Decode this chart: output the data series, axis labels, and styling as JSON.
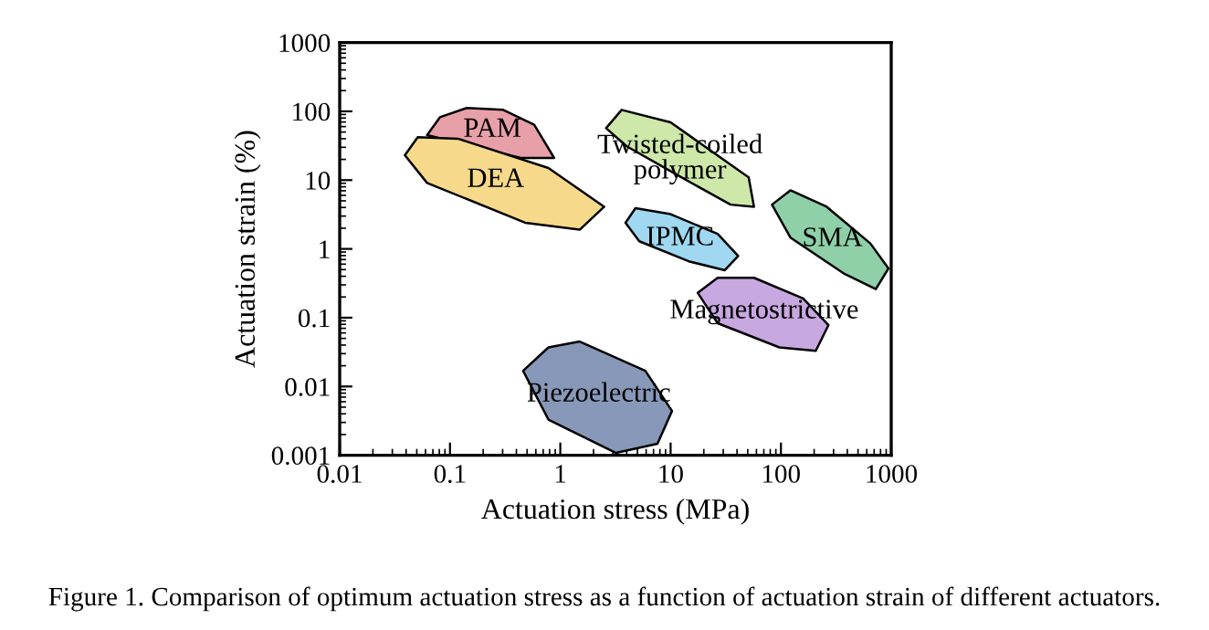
{
  "chart_data": {
    "type": "area",
    "xlabel": "Actuation stress (MPa)",
    "ylabel": "Actuation strain (%)",
    "log": "xy",
    "xlim": [
      0.01,
      1000
    ],
    "xticks": [
      0.01,
      0.1,
      1,
      10,
      100,
      1000
    ],
    "ylim": [
      0.001,
      1000
    ],
    "yticks": [
      0.001,
      0.01,
      0.1,
      1,
      10,
      100,
      1000
    ],
    "grid": false,
    "legend": false,
    "series": [
      {
        "name": "PAM",
        "color": "#e8a0a8",
        "x": [
          0.062,
          0.081,
          0.142,
          0.304,
          0.58,
          0.88,
          0.44
        ],
        "values": [
          45,
          82,
          112,
          105,
          64,
          21,
          21
        ]
      },
      {
        "name": "DEA",
        "color": "#f6d98a",
        "x": [
          0.039,
          0.051,
          0.118,
          0.78,
          2.5,
          1.5,
          0.48,
          0.062
        ],
        "values": [
          23,
          42,
          40,
          15,
          4.1,
          1.9,
          2.4,
          9.1
        ]
      },
      {
        "name": "Twisted-coiled\npolymer",
        "color": "#cde8a8",
        "x": [
          2.6,
          3.6,
          10,
          51,
          57,
          35,
          12.5,
          4.0
        ],
        "values": [
          57,
          105,
          69,
          11,
          4.1,
          4.4,
          11,
          31
        ]
      },
      {
        "name": "IPMC",
        "color": "#9fd8f0",
        "x": [
          3.9,
          4.8,
          10,
          26.7,
          41,
          31,
          14.6,
          5.2
        ],
        "values": [
          2.4,
          3.9,
          3.2,
          1.65,
          0.79,
          0.49,
          0.66,
          1.29
        ]
      },
      {
        "name": "SMA",
        "color": "#8fd0a8",
        "x": [
          83,
          122,
          260,
          647,
          944,
          725,
          380,
          122
        ],
        "values": [
          4.4,
          7.1,
          4.1,
          1.2,
          0.52,
          0.26,
          0.43,
          1.46
        ]
      },
      {
        "name": "Magnetostrictive",
        "color": "#c8a8e0",
        "x": [
          17.6,
          26.7,
          57,
          159,
          270,
          207,
          97,
          26.7
        ],
        "values": [
          0.23,
          0.38,
          0.38,
          0.19,
          0.078,
          0.033,
          0.037,
          0.083
        ]
      },
      {
        "name": "Piezoelectric",
        "color": "#8898b8",
        "x": [
          0.46,
          0.78,
          1.5,
          5.9,
          10.3,
          7.6,
          3.2,
          0.78
        ],
        "values": [
          0.0169,
          0.037,
          0.045,
          0.0169,
          0.0044,
          0.00147,
          0.00108,
          0.0033
        ]
      }
    ],
    "annotations": [
      "Figure 1. Comparison of optimum actuation stress as a function of actuation strain of different actuators."
    ]
  }
}
